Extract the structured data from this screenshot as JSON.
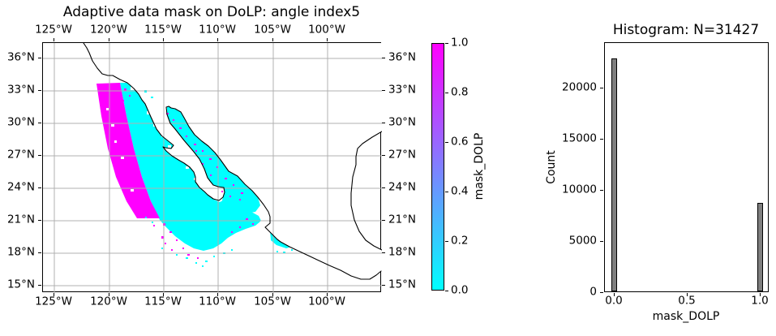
{
  "map": {
    "title": "Adaptive data mask on DoLP: angle index5",
    "lon_tick_labels": [
      "125°W",
      "120°W",
      "115°W",
      "110°W",
      "105°W",
      "100°W"
    ],
    "lat_tick_labels": [
      "36°N",
      "33°N",
      "30°N",
      "27°N",
      "24°N",
      "21°N",
      "18°N",
      "15°N"
    ],
    "grid_color": "#b0b0b0",
    "coastline_color": "#000000",
    "swath_masked_color": "#ff00ff",
    "swath_unmasked_color": "#00ffff"
  },
  "colorbar": {
    "label": "mask_DOLP",
    "tick_labels": [
      "0.0",
      "0.2",
      "0.4",
      "0.6",
      "0.8",
      "1.0"
    ],
    "tick_values": [
      0.0,
      0.2,
      0.4,
      0.6,
      0.8,
      1.0
    ],
    "min_color": "#00ffff",
    "max_color": "#ff00ff",
    "colormap": "cool"
  },
  "histogram": {
    "title": "Histogram: N=31427",
    "xlabel": "mask_DOLP",
    "ylabel": "Count",
    "xtick_labels": [
      "0.0",
      "0.5",
      "1.0"
    ],
    "ytick_labels": [
      "0",
      "5000",
      "10000",
      "15000",
      "20000"
    ],
    "bar_color": "#7f7f7f",
    "bar_edge_color": "#000000"
  },
  "chart_data": [
    {
      "type": "heatmap",
      "title": "Adaptive data mask on DoLP: angle index5",
      "description": "Plate-Carree map of a binary adaptive data mask (mask_DOLP) over Baja California, the Gulf of California and western Mexico. A satellite swath runs NNE-SSW: the western strip of the swath is masked = 1.0 (magenta), the remainder of the swath is masked = 0.0 (cyan); land and no-data areas are white with black coastlines.",
      "colormap": "cool",
      "colorbar_label": "mask_DOLP",
      "colorbar_range": [
        0.0,
        1.0
      ],
      "colorbar_ticks": [
        0.0,
        0.2,
        0.4,
        0.6,
        0.8,
        1.0
      ],
      "lon_ticks_deg": [
        -125,
        -120,
        -115,
        -110,
        -105,
        -100
      ],
      "lat_ticks_deg": [
        36,
        33,
        30,
        27,
        24,
        21,
        18,
        15
      ],
      "approx_extent_lonlat": [
        -126.0,
        -95.2,
        14.3,
        37.4
      ],
      "values_present": [
        0.0,
        1.0
      ],
      "grid": true
    },
    {
      "type": "bar",
      "title": "Histogram: N=31427",
      "xlabel": "mask_DOLP",
      "ylabel": "Count",
      "x": [
        0.0,
        1.0
      ],
      "values": [
        22800,
        8627
      ],
      "n_total": 31427,
      "bar_width": 0.04,
      "xlim": [
        -0.07,
        1.06
      ],
      "ylim": [
        0,
        24440
      ],
      "xticks": [
        0.0,
        0.5,
        1.0
      ],
      "yticks": [
        0,
        5000,
        10000,
        15000,
        20000
      ],
      "grid": false,
      "legend": false
    }
  ]
}
